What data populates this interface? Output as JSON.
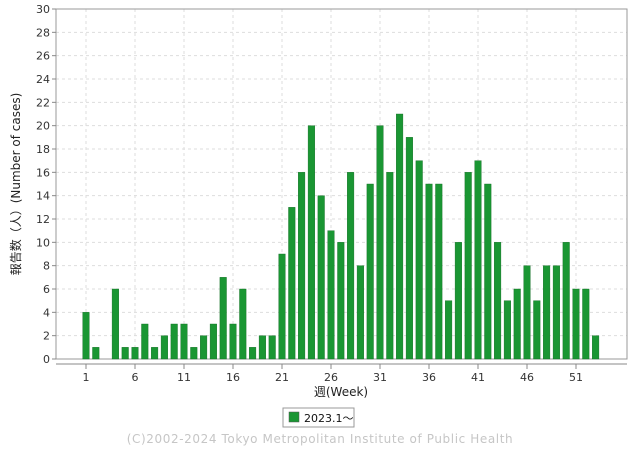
{
  "chart_data": {
    "type": "bar",
    "xlabel": "週(Week)",
    "ylabel": "報告数（人）(Number of cases)",
    "ylim": [
      0,
      30
    ],
    "yticks": [
      0,
      2,
      4,
      6,
      8,
      10,
      12,
      14,
      16,
      18,
      20,
      22,
      24,
      26,
      28,
      30
    ],
    "xticks": [
      1,
      6,
      11,
      16,
      21,
      26,
      31,
      36,
      41,
      46,
      51
    ],
    "grid": true,
    "legend_position": "bottom-center",
    "series": [
      {
        "name": "2023.1〜",
        "color": "#1a9633",
        "x": [
          1,
          2,
          3,
          4,
          5,
          6,
          7,
          8,
          9,
          10,
          11,
          12,
          13,
          14,
          15,
          16,
          17,
          18,
          19,
          20,
          21,
          22,
          23,
          24,
          25,
          26,
          27,
          28,
          29,
          30,
          31,
          32,
          33,
          34,
          35,
          36,
          37,
          38,
          39,
          40,
          41,
          42,
          43,
          44,
          45,
          46,
          47,
          48,
          49,
          50,
          51,
          52,
          53
        ],
        "values": [
          4,
          1,
          0,
          6,
          1,
          1,
          3,
          1,
          2,
          3,
          3,
          1,
          2,
          3,
          7,
          3,
          6,
          1,
          2,
          2,
          9,
          13,
          16,
          20,
          14,
          11,
          10,
          16,
          8,
          15,
          20,
          16,
          21,
          19,
          17,
          15,
          15,
          5,
          10,
          16,
          17,
          15,
          10,
          5,
          6,
          8,
          5,
          8,
          8,
          10,
          6,
          6,
          2
        ]
      }
    ]
  },
  "footer": {
    "copyright": "(C)2002-2024 Tokyo Metropolitan Institute of Public Health"
  }
}
